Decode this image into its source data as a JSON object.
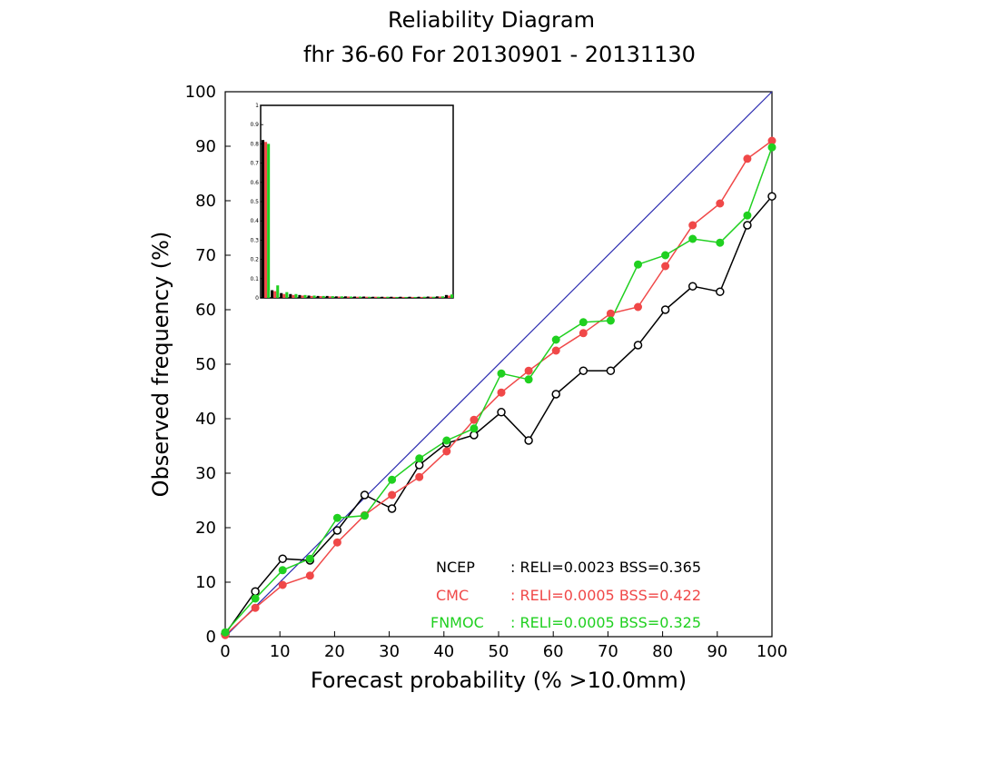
{
  "chart_data": {
    "type": "line",
    "title": "Reliability Diagram",
    "subtitle": "fhr 36-60 For 20130901 - 20131130",
    "xlabel": "Forecast probability (% >10.0mm)",
    "ylabel": "Observed frequency (%)",
    "xlim": [
      0,
      100
    ],
    "ylim": [
      0,
      100
    ],
    "xticks": [
      "0",
      "10",
      "20",
      "30",
      "40",
      "50",
      "60",
      "70",
      "80",
      "90",
      "100"
    ],
    "yticks": [
      "0",
      "10",
      "20",
      "30",
      "40",
      "50",
      "60",
      "70",
      "80",
      "90",
      "100"
    ],
    "diagonal_color": "#2b2bb0",
    "series": [
      {
        "name": "NCEP",
        "color": "#000000",
        "marker": "open-circle",
        "stats": ": RELI=0.0023 BSS=0.365",
        "x": [
          0,
          5.5,
          10.5,
          15.5,
          20.5,
          25.5,
          30.5,
          35.5,
          40.5,
          45.5,
          50.5,
          55.5,
          60.5,
          65.5,
          70.5,
          75.5,
          80.5,
          85.5,
          90.5,
          95.5,
          100
        ],
        "y": [
          0.5,
          8.3,
          14.3,
          14.0,
          19.5,
          26.0,
          23.5,
          31.5,
          35.5,
          37.0,
          41.2,
          36.0,
          44.5,
          48.8,
          48.8,
          53.5,
          60.0,
          64.3,
          63.3,
          75.5,
          80.8
        ]
      },
      {
        "name": "CMC",
        "color": "#f04848",
        "marker": "filled-circle",
        "stats": ": RELI=0.0005 BSS=0.422",
        "x": [
          0,
          5.5,
          10.5,
          15.5,
          20.5,
          25.5,
          30.5,
          35.5,
          40.5,
          45.5,
          50.5,
          55.5,
          60.5,
          65.5,
          70.5,
          75.5,
          80.5,
          85.5,
          90.5,
          95.5,
          100
        ],
        "y": [
          0.3,
          5.3,
          9.5,
          11.2,
          17.3,
          22.3,
          26.0,
          29.3,
          34.0,
          39.8,
          44.8,
          48.8,
          52.5,
          55.7,
          59.3,
          60.5,
          68.0,
          75.5,
          79.5,
          87.7,
          91.0
        ]
      },
      {
        "name": "FNMOC",
        "color": "#20d020",
        "marker": "filled-circle",
        "stats": ": RELI=0.0005 BSS=0.325",
        "x": [
          0,
          5.5,
          10.5,
          15.5,
          20.5,
          25.5,
          30.5,
          35.5,
          40.5,
          45.5,
          50.5,
          55.5,
          60.5,
          65.5,
          70.5,
          75.5,
          80.5,
          85.5,
          90.5,
          95.5,
          100
        ],
        "y": [
          0.8,
          7.0,
          12.2,
          14.3,
          21.8,
          22.2,
          28.8,
          32.7,
          36.0,
          38.2,
          48.3,
          47.2,
          54.5,
          57.7,
          58.0,
          68.3,
          70.0,
          73.0,
          72.3,
          77.3,
          89.8
        ]
      }
    ],
    "inset": {
      "type": "bar",
      "ylim": [
        0,
        1
      ],
      "yticks": [
        "0",
        "0.1",
        "0.2",
        "0.3",
        "0.4",
        "0.5",
        "0.6",
        "0.7",
        "0.8",
        "0.9",
        "1"
      ],
      "bins": 21,
      "series": [
        {
          "name": "NCEP",
          "color": "#000000",
          "values": [
            0.82,
            0.04,
            0.025,
            0.02,
            0.015,
            0.012,
            0.01,
            0.01,
            0.008,
            0.008,
            0.007,
            0.007,
            0.006,
            0.006,
            0.006,
            0.006,
            0.006,
            0.006,
            0.007,
            0.008,
            0.015
          ]
        },
        {
          "name": "CMC",
          "color": "#f04848",
          "values": [
            0.81,
            0.035,
            0.02,
            0.015,
            0.012,
            0.01,
            0.009,
            0.008,
            0.007,
            0.007,
            0.006,
            0.006,
            0.006,
            0.005,
            0.005,
            0.005,
            0.005,
            0.005,
            0.006,
            0.007,
            0.012
          ]
        },
        {
          "name": "FNMOC",
          "color": "#20d020",
          "values": [
            0.8,
            0.065,
            0.03,
            0.02,
            0.015,
            0.012,
            0.01,
            0.009,
            0.008,
            0.007,
            0.007,
            0.006,
            0.006,
            0.006,
            0.005,
            0.005,
            0.005,
            0.006,
            0.006,
            0.008,
            0.018
          ]
        }
      ]
    }
  }
}
